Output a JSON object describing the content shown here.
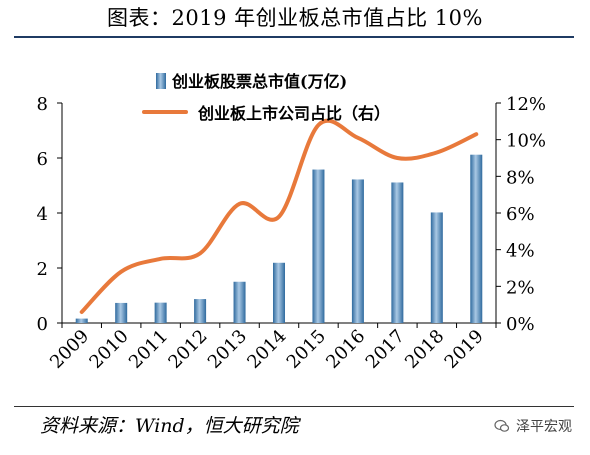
{
  "header": {
    "title": "图表：2019 年创业板总市值占比 10%"
  },
  "footer": {
    "source": "资料来源：Wind，恒大研究院",
    "watermark": "泽平宏观"
  },
  "colors": {
    "bar": "#4f86b6",
    "bar_light": "#a9c8e4",
    "line": "#e8793b",
    "rule": "#1f3b63"
  },
  "chart_data": {
    "type": "bar",
    "categories": [
      "2009",
      "2010",
      "2011",
      "2012",
      "2013",
      "2014",
      "2015",
      "2016",
      "2017",
      "2018",
      "2019"
    ],
    "series": [
      {
        "name": "创业板股票总市值(万亿)",
        "type": "bar",
        "axis": "left",
        "values": [
          0.16,
          0.73,
          0.74,
          0.87,
          1.5,
          2.19,
          5.58,
          5.22,
          5.11,
          4.02,
          6.12
        ]
      },
      {
        "name": "创业板上市公司占比（右）",
        "type": "line",
        "axis": "right",
        "values": [
          0.6,
          2.8,
          3.5,
          3.8,
          6.5,
          5.8,
          10.8,
          10.1,
          9.0,
          9.3,
          10.3
        ]
      }
    ],
    "ylim": [
      0,
      8
    ],
    "y2lim": [
      0,
      12
    ],
    "yticks": [
      "0",
      "2",
      "4",
      "6",
      "8"
    ],
    "y2ticks": [
      "0%",
      "2%",
      "4%",
      "6%",
      "8%",
      "10%",
      "12%"
    ],
    "legend": "top-center"
  }
}
